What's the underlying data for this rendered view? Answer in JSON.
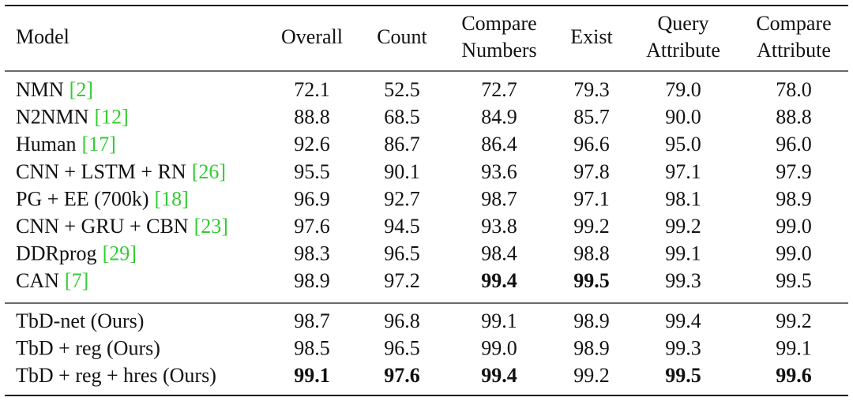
{
  "table": {
    "columns": [
      [
        "Model"
      ],
      [
        "Overall"
      ],
      [
        "Count"
      ],
      [
        "Compare",
        "Numbers"
      ],
      [
        "Exist"
      ],
      [
        "Query",
        "Attribute"
      ],
      [
        "Compare",
        "Attribute"
      ]
    ],
    "groups": [
      {
        "rows": [
          {
            "model": "NMN",
            "cite": "[2]",
            "values": [
              "72.1",
              "52.5",
              "72.7",
              "79.3",
              "79.0",
              "78.0"
            ],
            "bold": []
          },
          {
            "model": "N2NMN",
            "cite": "[12]",
            "values": [
              "88.8",
              "68.5",
              "84.9",
              "85.7",
              "90.0",
              "88.8"
            ],
            "bold": []
          },
          {
            "model": "Human",
            "cite": "[17]",
            "values": [
              "92.6",
              "86.7",
              "86.4",
              "96.6",
              "95.0",
              "96.0"
            ],
            "bold": []
          },
          {
            "model": "CNN + LSTM + RN",
            "cite": "[26]",
            "values": [
              "95.5",
              "90.1",
              "93.6",
              "97.8",
              "97.1",
              "97.9"
            ],
            "bold": []
          },
          {
            "model": "PG + EE (700k)",
            "cite": "[18]",
            "values": [
              "96.9",
              "92.7",
              "98.7",
              "97.1",
              "98.1",
              "98.9"
            ],
            "bold": []
          },
          {
            "model": "CNN + GRU + CBN",
            "cite": "[23]",
            "values": [
              "97.6",
              "94.5",
              "93.8",
              "99.2",
              "99.2",
              "99.0"
            ],
            "bold": []
          },
          {
            "model": "DDRprog",
            "cite": "[29]",
            "values": [
              "98.3",
              "96.5",
              "98.4",
              "98.8",
              "99.1",
              "99.0"
            ],
            "bold": []
          },
          {
            "model": "CAN",
            "cite": "[7]",
            "values": [
              "98.9",
              "97.2",
              "99.4",
              "99.5",
              "99.3",
              "99.5"
            ],
            "bold": [
              2,
              3
            ]
          }
        ]
      },
      {
        "rows": [
          {
            "model": "TbD-net (Ours)",
            "cite": null,
            "values": [
              "98.7",
              "96.8",
              "99.1",
              "98.9",
              "99.4",
              "99.2"
            ],
            "bold": []
          },
          {
            "model": "TbD + reg (Ours)",
            "cite": null,
            "values": [
              "98.5",
              "96.5",
              "99.0",
              "98.9",
              "99.3",
              "99.1"
            ],
            "bold": []
          },
          {
            "model": "TbD + reg + hres (Ours)",
            "cite": null,
            "values": [
              "99.1",
              "97.6",
              "99.4",
              "99.2",
              "99.5",
              "99.6"
            ],
            "bold": [
              0,
              1,
              2,
              4,
              5
            ]
          }
        ]
      }
    ],
    "cite_color": "#33cc33"
  }
}
